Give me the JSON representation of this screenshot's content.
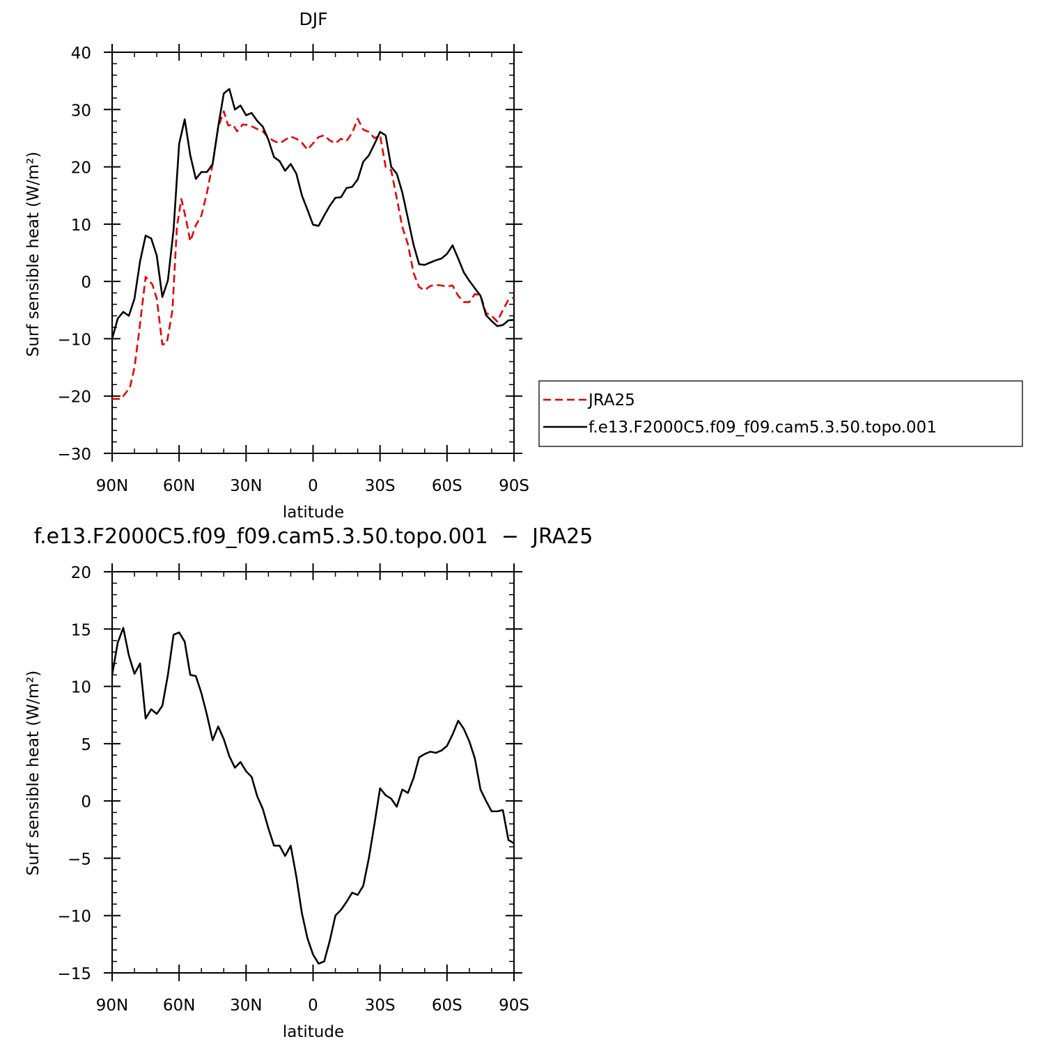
{
  "chart_data": [
    {
      "type": "line",
      "title": "DJF",
      "xlabel": "latitude",
      "ylabel": "Surf sensible heat (W/m²)",
      "xlim": [
        90,
        -90
      ],
      "ylim": [
        -30,
        40
      ],
      "xticks": [
        {
          "value": 90,
          "label": "90N"
        },
        {
          "value": 60,
          "label": "60N"
        },
        {
          "value": 30,
          "label": "30N"
        },
        {
          "value": 0,
          "label": "0"
        },
        {
          "value": -30,
          "label": "30S"
        },
        {
          "value": -60,
          "label": "60S"
        },
        {
          "value": -90,
          "label": "90S"
        }
      ],
      "yticks": [
        {
          "value": 40,
          "label": "40"
        },
        {
          "value": 30,
          "label": "30"
        },
        {
          "value": 20,
          "label": "20"
        },
        {
          "value": 10,
          "label": "10"
        },
        {
          "value": 0,
          "label": "0"
        },
        {
          "value": -10,
          "label": "−10"
        },
        {
          "value": -20,
          "label": "−20"
        },
        {
          "value": -30,
          "label": "−30"
        }
      ],
      "legend": {
        "placement": "right"
      },
      "series": [
        {
          "name": "JRA25",
          "color": "#e60000",
          "dash": "dashed",
          "x": [
            90,
            86,
            82,
            80,
            78,
            75,
            72,
            70,
            67.5,
            65.5,
            63,
            61,
            59,
            57,
            55,
            52.5,
            50,
            47.5,
            45,
            42.5,
            40,
            38,
            36,
            34,
            31.5,
            29,
            27,
            25,
            22.5,
            20,
            17.5,
            15,
            12.5,
            10,
            7.5,
            5,
            2.5,
            0,
            -2.5,
            -5,
            -7.5,
            -10,
            -12.5,
            -15,
            -17.5,
            -20,
            -22.5,
            -25,
            -27.5,
            -30,
            -32.5,
            -35,
            -37.5,
            -40,
            -42.5,
            -45,
            -47.5,
            -50,
            -52.5,
            -55,
            -57.5,
            -60,
            -62.5,
            -65,
            -67.5,
            -70,
            -72.5,
            -75,
            -77.5,
            -80,
            -82.5,
            -85,
            -87.5,
            -90
          ],
          "values": [
            -20.5,
            -20.5,
            -18.5,
            -15,
            -9,
            0.8,
            -0.5,
            -3,
            -11,
            -10.8,
            -5,
            9.5,
            14.4,
            11,
            7,
            9.8,
            11.5,
            15.5,
            20.5,
            26.9,
            29.7,
            27.2,
            27.4,
            26.2,
            27.4,
            27.3,
            27,
            26.6,
            26.2,
            25.1,
            24.5,
            24.1,
            24.7,
            25.3,
            24.9,
            24.2,
            23,
            24.1,
            25.2,
            25.5,
            24.6,
            24.1,
            24.9,
            24.5,
            25.9,
            28.4,
            26.5,
            26.1,
            25,
            25.5,
            20,
            19.4,
            14.5,
            9.5,
            6.5,
            1.5,
            -1,
            -1.5,
            -0.8,
            -0.6,
            -0.7,
            -0.9,
            -0.7,
            -2.5,
            -3.6,
            -3.6,
            -2.2,
            -2.4,
            -5.5,
            -6,
            -7,
            -5,
            -3.2,
            -2.8
          ]
        },
        {
          "name": "f.e13.F2000C5.f09_f09.cam5.3.50.topo.001",
          "color": "#000000",
          "dash": "solid",
          "x": [
            90,
            87.5,
            85,
            82.5,
            80,
            77.5,
            75,
            72.5,
            70,
            67.5,
            65,
            62.5,
            60,
            57.5,
            55,
            52.5,
            50,
            47.5,
            45,
            42.5,
            40,
            37.5,
            35,
            32.5,
            30,
            27.5,
            25,
            22.5,
            20,
            17.5,
            15,
            12.5,
            10,
            7.5,
            5,
            2.5,
            0,
            -2.5,
            -5,
            -7.5,
            -10,
            -12.5,
            -15,
            -17.5,
            -20,
            -22.5,
            -25,
            -27.5,
            -30,
            -32.5,
            -35,
            -37.5,
            -40,
            -42.5,
            -45,
            -47.5,
            -50,
            -52.5,
            -55,
            -57.5,
            -60,
            -62.5,
            -65,
            -67.5,
            -70,
            -72.5,
            -75,
            -77.5,
            -80,
            -82.5,
            -85,
            -87.5,
            -90
          ],
          "values": [
            -10,
            -6.5,
            -5.3,
            -6,
            -3,
            3.5,
            8,
            7.5,
            4.5,
            -2.7,
            0.2,
            9,
            24,
            28.3,
            22,
            17.9,
            19.1,
            19.1,
            20.5,
            27,
            32.8,
            33.6,
            30,
            30.7,
            29,
            29.4,
            28,
            27,
            24.7,
            21.7,
            21,
            19.3,
            20.5,
            18.8,
            15,
            12.5,
            9.9,
            9.7,
            11.5,
            13.2,
            14.6,
            14.7,
            16.3,
            16.5,
            17.8,
            20.9,
            22,
            24,
            26.1,
            25.5,
            20,
            18.8,
            15.5,
            11,
            6.4,
            3,
            2.9,
            3.3,
            3.7,
            4,
            4.8,
            6.3,
            4,
            1.6,
            0.1,
            -1.2,
            -2.5,
            -5.9,
            -6.9,
            -7.8,
            -7.6,
            -6.8,
            -6.7
          ]
        }
      ]
    },
    {
      "type": "line",
      "title": "f.e13.F2000C5.f09_f09.cam5.3.50.topo.001  −  JRA25",
      "xlabel": "latitude",
      "ylabel": "Surf sensible heat (W/m²)",
      "xlim": [
        90,
        -90
      ],
      "ylim": [
        -15,
        20
      ],
      "xticks": [
        {
          "value": 90,
          "label": "90N"
        },
        {
          "value": 60,
          "label": "60N"
        },
        {
          "value": 30,
          "label": "30N"
        },
        {
          "value": 0,
          "label": "0"
        },
        {
          "value": -30,
          "label": "30S"
        },
        {
          "value": -60,
          "label": "60S"
        },
        {
          "value": -90,
          "label": "90S"
        }
      ],
      "yticks": [
        {
          "value": 20,
          "label": "20"
        },
        {
          "value": 15,
          "label": "15"
        },
        {
          "value": 10,
          "label": "10"
        },
        {
          "value": 5,
          "label": "5"
        },
        {
          "value": 0,
          "label": "0"
        },
        {
          "value": -5,
          "label": "−5"
        },
        {
          "value": -10,
          "label": "−10"
        },
        {
          "value": -15,
          "label": "−15"
        }
      ],
      "series": [
        {
          "color": "#000000",
          "dash": "solid",
          "x": [
            90,
            87.5,
            85,
            82.5,
            80,
            77.5,
            75,
            72.5,
            70,
            67.5,
            65,
            62.5,
            60,
            57.5,
            55,
            52.5,
            50,
            47.5,
            45,
            42.5,
            40,
            37.5,
            35,
            32.5,
            30,
            27.5,
            25,
            22.5,
            20,
            17.5,
            15,
            12.5,
            10,
            7.5,
            5,
            2.5,
            0,
            -2.5,
            -5,
            -7.5,
            -10,
            -12.5,
            -15,
            -17.5,
            -20,
            -22.5,
            -25,
            -27.5,
            -30,
            -32.5,
            -35,
            -37.5,
            -40,
            -42.5,
            -45,
            -47.5,
            -50,
            -52.5,
            -55,
            -57.5,
            -60,
            -62.5,
            -65,
            -67.5,
            -70,
            -72.5,
            -75,
            -77.5,
            -80,
            -82.5,
            -85,
            -87.5,
            -90
          ],
          "values": [
            11,
            13.8,
            15.1,
            12.7,
            11.1,
            12,
            7.2,
            8,
            7.6,
            8.3,
            11,
            14.5,
            14.7,
            13.9,
            11,
            10.9,
            9.4,
            7.5,
            5.3,
            6.5,
            5.4,
            3.9,
            2.9,
            3.4,
            2.6,
            2.1,
            0.4,
            -0.7,
            -2.4,
            -3.9,
            -3.9,
            -4.8,
            -3.9,
            -6.6,
            -9.8,
            -12,
            -13.4,
            -14.2,
            -14,
            -12.2,
            -10,
            -9.5,
            -8.8,
            -8,
            -8.2,
            -7.4,
            -5,
            -2,
            1.1,
            0.5,
            0.2,
            -0.5,
            1,
            0.7,
            2,
            3.8,
            4.1,
            4.3,
            4.2,
            4.4,
            4.8,
            5.8,
            7,
            6.3,
            5.2,
            3.7,
            1,
            0,
            -0.9,
            -0.9,
            -0.8,
            -3.4,
            -3.7
          ]
        }
      ]
    }
  ]
}
